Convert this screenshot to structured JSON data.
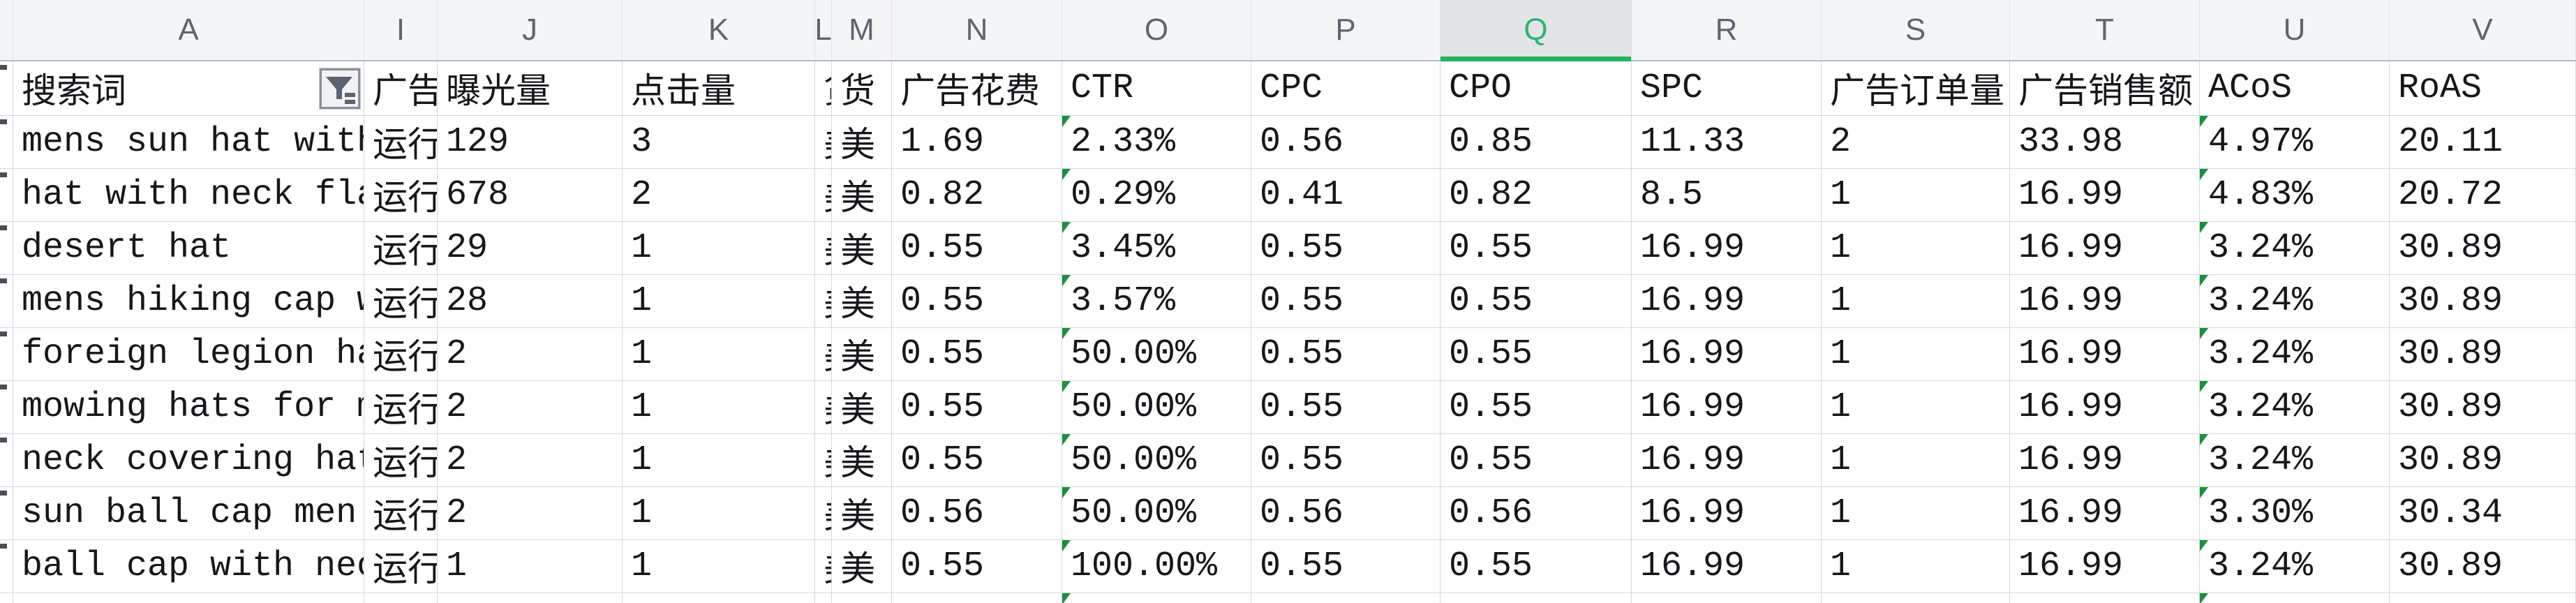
{
  "sheet": {
    "selected_column_letter": "Q",
    "column_letters": [
      "A",
      "I",
      "J",
      "K",
      "L",
      "M",
      "N",
      "O",
      "P",
      "Q",
      "R",
      "S",
      "T",
      "U",
      "V"
    ],
    "headers": {
      "keyword": "搜索词",
      "status": "广告",
      "impressions": "曝光量",
      "clicks": "点击量",
      "l_clip": "货",
      "currency": "货",
      "spend": "广告花费",
      "ctr": "CTR",
      "cpc": "CPC",
      "cpo": "CPO",
      "spc": "SPC",
      "orders": "广告订单量",
      "sales": "广告销售额",
      "acos": "ACoS",
      "roas": "RoAS"
    },
    "icons": {
      "a1_filter": "autofilter-funnel-icon",
      "error_marker": "green-corner-triangle"
    },
    "colors": {
      "selected_green": "#1fb35f",
      "selected_letter_green": "#2db273",
      "selected_header_bg": "#e3e4e7",
      "triangle_green": "#1e8e3e",
      "gridline": "#d0d6e0",
      "strip_bg": "#f4f5f7",
      "text": "#16171b"
    },
    "rows": [
      {
        "keyword": "mens sun hat with",
        "status": "运行",
        "impressions": "129",
        "clicks": "3",
        "l_clip": "美",
        "currency": "美",
        "spend": "1.69",
        "ctr": "2.33%",
        "cpc": "0.56",
        "cpo": "0.85",
        "spc": "11.33",
        "orders": "2",
        "sales": "33.98",
        "acos": "4.97%",
        "roas": "20.11"
      },
      {
        "keyword": "hat with neck fla",
        "status": "运行",
        "impressions": "678",
        "clicks": "2",
        "l_clip": "美",
        "currency": "美",
        "spend": "0.82",
        "ctr": "0.29%",
        "cpc": "0.41",
        "cpo": "0.82",
        "spc": "8.5",
        "orders": "1",
        "sales": "16.99",
        "acos": "4.83%",
        "roas": "20.72"
      },
      {
        "keyword": "desert hat",
        "status": "运行",
        "impressions": "29",
        "clicks": "1",
        "l_clip": "美",
        "currency": "美",
        "spend": "0.55",
        "ctr": "3.45%",
        "cpc": "0.55",
        "cpo": "0.55",
        "spc": "16.99",
        "orders": "1",
        "sales": "16.99",
        "acos": "3.24%",
        "roas": "30.89"
      },
      {
        "keyword": "mens hiking cap w",
        "status": "运行",
        "impressions": "28",
        "clicks": "1",
        "l_clip": "美",
        "currency": "美",
        "spend": "0.55",
        "ctr": "3.57%",
        "cpc": "0.55",
        "cpo": "0.55",
        "spc": "16.99",
        "orders": "1",
        "sales": "16.99",
        "acos": "3.24%",
        "roas": "30.89"
      },
      {
        "keyword": "foreign legion ha",
        "status": "运行",
        "impressions": "2",
        "clicks": "1",
        "l_clip": "美",
        "currency": "美",
        "spend": "0.55",
        "ctr": "50.00%",
        "cpc": "0.55",
        "cpo": "0.55",
        "spc": "16.99",
        "orders": "1",
        "sales": "16.99",
        "acos": "3.24%",
        "roas": "30.89"
      },
      {
        "keyword": "mowing hats for m",
        "status": "运行",
        "impressions": "2",
        "clicks": "1",
        "l_clip": "美",
        "currency": "美",
        "spend": "0.55",
        "ctr": "50.00%",
        "cpc": "0.55",
        "cpo": "0.55",
        "spc": "16.99",
        "orders": "1",
        "sales": "16.99",
        "acos": "3.24%",
        "roas": "30.89"
      },
      {
        "keyword": "neck covering hat",
        "status": "运行",
        "impressions": "2",
        "clicks": "1",
        "l_clip": "美",
        "currency": "美",
        "spend": "0.55",
        "ctr": "50.00%",
        "cpc": "0.55",
        "cpo": "0.55",
        "spc": "16.99",
        "orders": "1",
        "sales": "16.99",
        "acos": "3.24%",
        "roas": "30.89"
      },
      {
        "keyword": "sun ball cap men",
        "status": "运行",
        "impressions": "2",
        "clicks": "1",
        "l_clip": "美",
        "currency": "美",
        "spend": "0.56",
        "ctr": "50.00%",
        "cpc": "0.56",
        "cpo": "0.56",
        "spc": "16.99",
        "orders": "1",
        "sales": "16.99",
        "acos": "3.30%",
        "roas": "30.34"
      },
      {
        "keyword": "ball cap with nec",
        "status": "运行",
        "impressions": "1",
        "clicks": "1",
        "l_clip": "美",
        "currency": "美",
        "spend": "0.55",
        "ctr": "100.00%",
        "cpc": "0.55",
        "cpo": "0.55",
        "spc": "16.99",
        "orders": "1",
        "sales": "16.99",
        "acos": "3.24%",
        "roas": "30.89"
      }
    ]
  }
}
